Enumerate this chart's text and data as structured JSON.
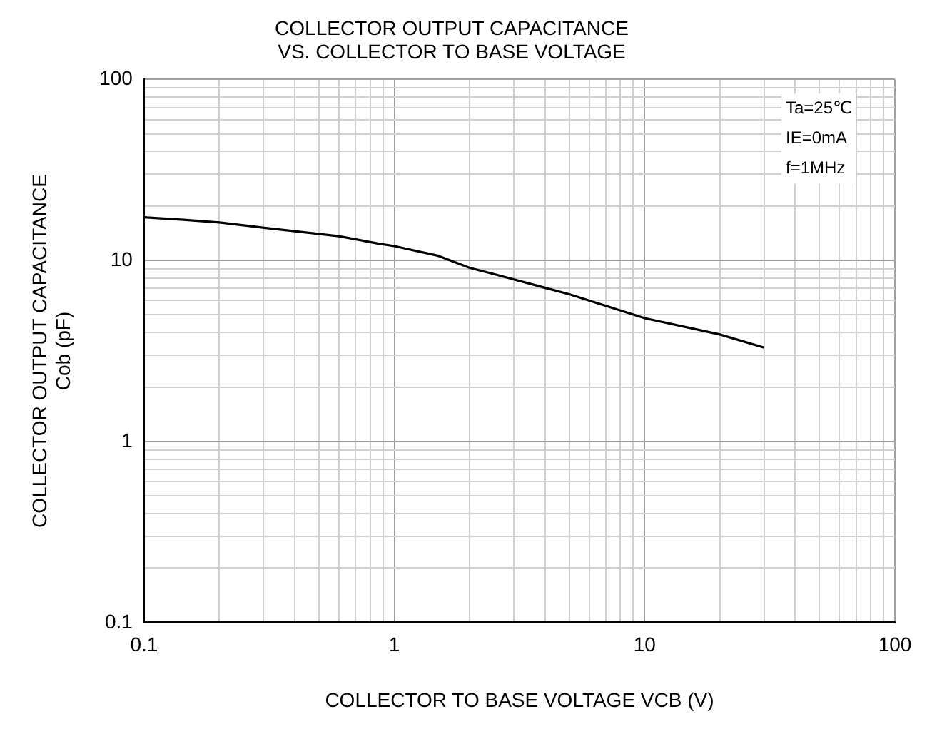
{
  "chart_data": {
    "type": "line",
    "title": "COLLECTOR OUTPUT CAPACITANCE\nVS. COLLECTOR TO BASE VOLTAGE",
    "xlabel": "COLLECTOR TO BASE VOLTAGE VCB (V)",
    "ylabel": "COLLECTOR OUTPUT CAPACITANCE\nCob (pF)",
    "annotations": [
      "Ta=25℃",
      "IE=0mA",
      "f=1MHz"
    ],
    "log": "xy",
    "grid": true,
    "legend": false,
    "marker": "none",
    "line_style": "solid",
    "x": [
      0.1,
      0.14,
      0.2,
      0.32,
      0.4,
      0.6,
      0.86,
      1,
      1.5,
      2,
      2.5,
      5,
      10,
      20,
      30
    ],
    "series": [
      {
        "color": "#000000",
        "values": [
          17.3,
          16.8,
          16.2,
          15,
          14.5,
          13.6,
          12.4,
          12,
          10.6,
          9.1,
          8.4,
          6.5,
          4.8,
          3.9,
          3.3
        ]
      }
    ],
    "xlim": [
      0.1,
      100
    ],
    "ylim": [
      0.1,
      100
    ],
    "xticks": [
      0.1,
      {
        "value": 0.2,
        "label": null
      },
      {
        "value": 0.3,
        "label": null
      },
      {
        "value": 0.4,
        "label": null
      },
      {
        "value": 0.5,
        "label": null
      },
      {
        "value": 0.6,
        "label": null
      },
      {
        "value": 0.7,
        "label": null
      },
      {
        "value": 0.8,
        "label": null
      },
      {
        "value": 0.9,
        "label": null
      },
      1,
      {
        "value": 2,
        "label": null
      },
      {
        "value": 3,
        "label": null
      },
      {
        "value": 4,
        "label": null
      },
      {
        "value": 5,
        "label": null
      },
      {
        "value": 6,
        "label": null
      },
      {
        "value": 7,
        "label": null
      },
      {
        "value": 8,
        "label": null
      },
      {
        "value": 9,
        "label": null
      },
      10,
      {
        "value": 20,
        "label": null
      },
      {
        "value": 30,
        "label": null
      },
      {
        "value": 40,
        "label": null
      },
      {
        "value": 50,
        "label": null
      },
      {
        "value": 60,
        "label": null
      },
      {
        "value": 70,
        "label": null
      },
      {
        "value": 80,
        "label": null
      },
      {
        "value": 90,
        "label": null
      },
      100
    ],
    "yticks": [
      0.1,
      {
        "value": 0.2,
        "label": null
      },
      {
        "value": 0.3,
        "label": null
      },
      {
        "value": 0.4,
        "label": null
      },
      {
        "value": 0.5,
        "label": null
      },
      {
        "value": 0.6,
        "label": null
      },
      {
        "value": 0.7,
        "label": null
      },
      {
        "value": 0.8,
        "label": null
      },
      {
        "value": 0.9,
        "label": null
      },
      1,
      {
        "value": 2,
        "label": null
      },
      {
        "value": 3,
        "label": null
      },
      {
        "value": 4,
        "label": null
      },
      {
        "value": 5,
        "label": null
      },
      {
        "value": 6,
        "label": null
      },
      {
        "value": 7,
        "label": null
      },
      {
        "value": 8,
        "label": null
      },
      {
        "value": 9,
        "label": null
      },
      10,
      {
        "value": 20,
        "label": null
      },
      {
        "value": 30,
        "label": null
      },
      {
        "value": 40,
        "label": null
      },
      {
        "value": 50,
        "label": null
      },
      {
        "value": 60,
        "label": null
      },
      {
        "value": 70,
        "label": null
      },
      {
        "value": 80,
        "label": null
      },
      {
        "value": 90,
        "label": null
      },
      100
    ]
  }
}
